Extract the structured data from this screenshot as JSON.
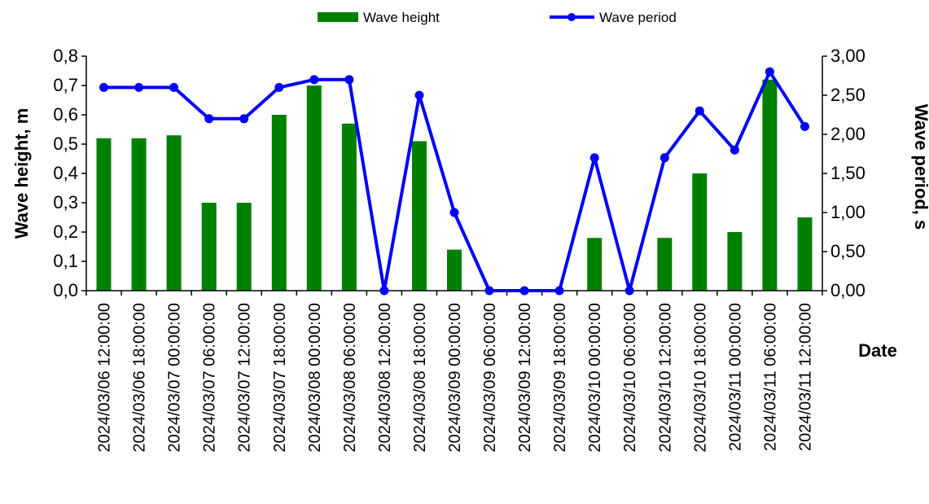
{
  "chart_data": {
    "type": "bar",
    "categories": [
      "2024/03/06 12:00:00",
      "2024/03/06 18:00:00",
      "2024/03/07 00:00:00",
      "2024/03/07 06:00:00",
      "2024/03/07 12:00:00",
      "2024/03/07 18:00:00",
      "2024/03/08 00:00:00",
      "2024/03/08 06:00:00",
      "2024/03/08 12:00:00",
      "2024/03/08 18:00:00",
      "2024/03/09 00:00:00",
      "2024/03/09 06:00:00",
      "2024/03/09 12:00:00",
      "2024/03/09 18:00:00",
      "2024/03/10 00:00:00",
      "2024/03/10 06:00:00",
      "2024/03/10 12:00:00",
      "2024/03/10 18:00:00",
      "2024/03/11 00:00:00",
      "2024/03/11 06:00:00",
      "2024/03/11 12:00:00"
    ],
    "series": [
      {
        "name": "Wave height",
        "type": "bar",
        "axis": "left",
        "color": "#008000",
        "values": [
          0.52,
          0.52,
          0.53,
          0.3,
          0.3,
          0.6,
          0.7,
          0.57,
          0.0,
          0.51,
          0.14,
          0.0,
          0.0,
          0.0,
          0.18,
          0.0,
          0.18,
          0.4,
          0.2,
          0.72,
          0.25
        ]
      },
      {
        "name": "Wave period",
        "type": "line",
        "axis": "right",
        "color": "#0000ff",
        "values": [
          2.6,
          2.6,
          2.6,
          2.2,
          2.2,
          2.6,
          2.7,
          2.7,
          0.0,
          2.5,
          1.0,
          0.0,
          0.0,
          0.0,
          1.7,
          0.0,
          1.7,
          2.3,
          1.8,
          2.8,
          2.1
        ]
      }
    ],
    "xlabel": "Date",
    "ylabel": "Wave height, m",
    "y2label": "Wave period, s",
    "ylim": [
      0,
      0.8
    ],
    "y2lim": [
      0,
      3.0
    ],
    "yticks": [
      "0,0",
      "0,1",
      "0,2",
      "0,3",
      "0,4",
      "0,5",
      "0,6",
      "0,7",
      "0,8"
    ],
    "y2ticks": [
      "0,00",
      "0,50",
      "1,00",
      "1,50",
      "2,00",
      "2,50",
      "3,00"
    ],
    "grid": false,
    "legend_position": "top"
  }
}
